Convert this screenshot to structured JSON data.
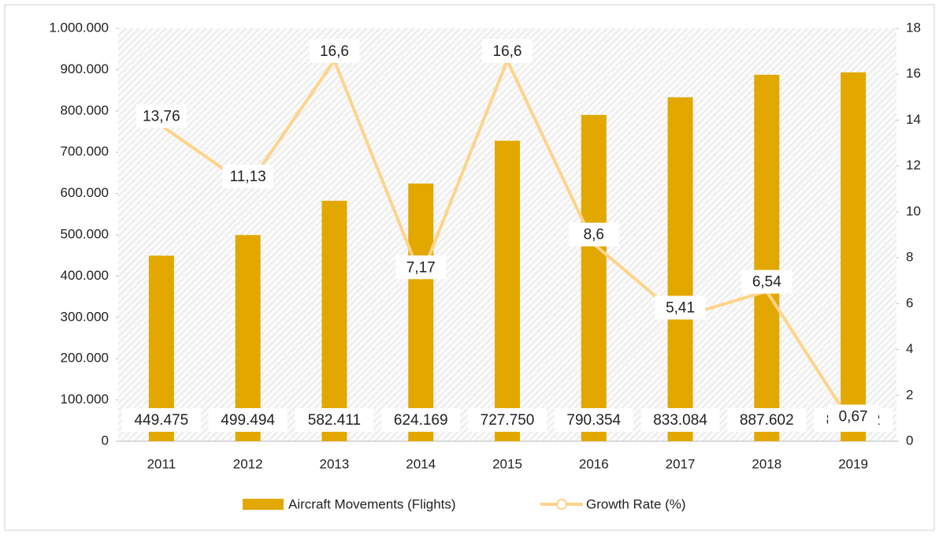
{
  "chart_data": {
    "type": "bar",
    "categories": [
      "2011",
      "2012",
      "2013",
      "2014",
      "2015",
      "2016",
      "2017",
      "2018",
      "2019"
    ],
    "series": [
      {
        "name": "Aircraft Movements (Flights)",
        "color": "#e2a800",
        "values": [
          449475,
          499494,
          582411,
          624169,
          727750,
          790354,
          833084,
          887602,
          893522
        ],
        "value_labels": [
          "449.475",
          "499.494",
          "582.411",
          "624.169",
          "727.750",
          "790.354",
          "833.084",
          "887.602",
          "893.522"
        ]
      },
      {
        "name": "Growth Rate (%)",
        "type": "line",
        "axis": "y2",
        "color": "#fdd48a",
        "values": [
          13.76,
          11.13,
          16.6,
          7.17,
          16.6,
          8.6,
          5.41,
          6.54,
          0.67
        ],
        "value_labels": [
          "13,76",
          "11,13",
          "16,6",
          "7,17",
          "16,6",
          "8,6",
          "5,41",
          "6,54",
          "0,67"
        ]
      }
    ],
    "ylim": [
      0,
      1000000
    ],
    "yticks": [
      0,
      {
        "value": 100000,
        "label": "100.000"
      },
      {
        "value": 200000,
        "label": "200.000"
      },
      {
        "value": 300000,
        "label": "300.000"
      },
      {
        "value": 400000,
        "label": "400.000"
      },
      {
        "value": 500000,
        "label": "500.000"
      },
      {
        "value": 600000,
        "label": "600.000"
      },
      {
        "value": 700000,
        "label": "700.000"
      },
      {
        "value": 800000,
        "label": "800.000"
      },
      {
        "value": 900000,
        "label": "900.000"
      },
      {
        "value": 1000000,
        "label": "1.000.000"
      }
    ],
    "y2lim": [
      0,
      18
    ],
    "y2ticks": [
      0,
      2,
      4,
      6,
      8,
      10,
      12,
      14,
      16,
      18
    ],
    "legend": "bottom"
  }
}
